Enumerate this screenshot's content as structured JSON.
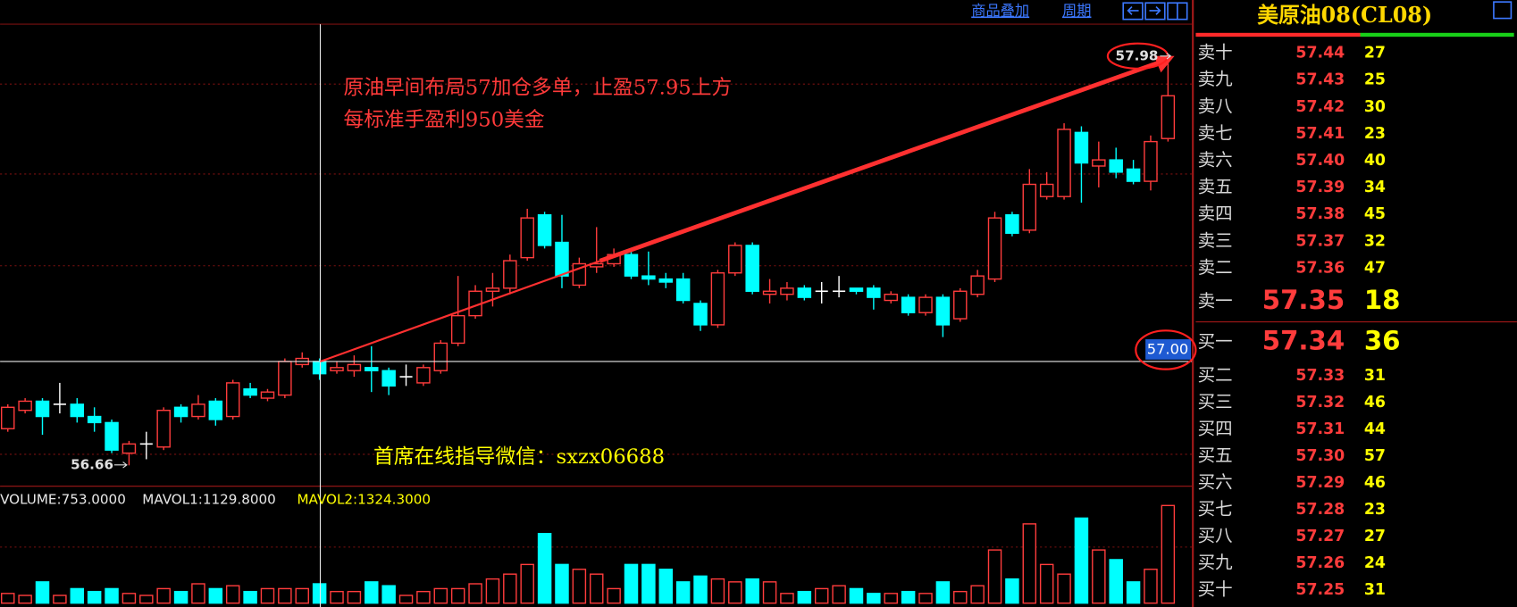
{
  "header": {
    "menu": [
      "商品叠加",
      "周期"
    ],
    "title": "美原油08(CL08)"
  },
  "annotations": {
    "note_lines": [
      "原油早间布局57加仓多单，止盈57.95上方",
      "每标准手盈利950美金"
    ],
    "wechat": "首席在线指导微信：sxzx06688",
    "high_label": "57.98",
    "low_label": "56.66",
    "cross_label": "57.00"
  },
  "order_book": {
    "asks": [
      {
        "label": "卖十",
        "price": "57.44",
        "volume": 27
      },
      {
        "label": "卖九",
        "price": "57.43",
        "volume": 25
      },
      {
        "label": "卖八",
        "price": "57.42",
        "volume": 30
      },
      {
        "label": "卖七",
        "price": "57.41",
        "volume": 23
      },
      {
        "label": "卖六",
        "price": "57.40",
        "volume": 40
      },
      {
        "label": "卖五",
        "price": "57.39",
        "volume": 34
      },
      {
        "label": "卖四",
        "price": "57.38",
        "volume": 45
      },
      {
        "label": "卖三",
        "price": "57.37",
        "volume": 32
      },
      {
        "label": "卖二",
        "price": "57.36",
        "volume": 47
      },
      {
        "label": "卖一",
        "price": "57.35",
        "volume": 18
      }
    ],
    "bids": [
      {
        "label": "买一",
        "price": "57.34",
        "volume": 36
      },
      {
        "label": "买二",
        "price": "57.33",
        "volume": 31
      },
      {
        "label": "买三",
        "price": "57.32",
        "volume": 46
      },
      {
        "label": "买四",
        "price": "57.31",
        "volume": 44
      },
      {
        "label": "买五",
        "price": "57.30",
        "volume": 57
      },
      {
        "label": "买六",
        "price": "57.29",
        "volume": 46
      },
      {
        "label": "买七",
        "price": "57.28",
        "volume": 23
      },
      {
        "label": "买八",
        "price": "57.27",
        "volume": 27
      },
      {
        "label": "买九",
        "price": "57.26",
        "volume": 24
      },
      {
        "label": "买十",
        "price": "57.25",
        "volume": 31
      }
    ]
  },
  "chart_data": {
    "type": "candlestick",
    "open": [
      56.78,
      56.84,
      56.87,
      56.86,
      56.86,
      56.82,
      56.8,
      56.7,
      56.73,
      56.72,
      56.85,
      56.82,
      56.87,
      56.82,
      56.91,
      56.88,
      56.89,
      56.99,
      57.0,
      56.97,
      56.97,
      56.98,
      56.97,
      56.95,
      56.93,
      56.97,
      57.06,
      57.15,
      57.23,
      57.24,
      57.34,
      57.48,
      57.39,
      57.25,
      57.31,
      57.32,
      57.35,
      57.28,
      57.27,
      57.27,
      57.19,
      57.12,
      57.29,
      57.38,
      57.22,
      57.22,
      57.24,
      57.23,
      57.23,
      57.24,
      57.24,
      57.2,
      57.21,
      57.16,
      57.21,
      57.14,
      57.22,
      57.27,
      57.48,
      57.43,
      57.54,
      57.54,
      57.75,
      57.64,
      57.66,
      57.63,
      57.59,
      57.73
    ],
    "high": [
      56.86,
      56.88,
      56.88,
      56.93,
      56.88,
      56.85,
      56.81,
      56.74,
      56.77,
      56.85,
      56.86,
      56.89,
      56.88,
      56.94,
      56.93,
      56.91,
      57.01,
      57.03,
      57.01,
      57.0,
      57.02,
      57.05,
      56.98,
      56.99,
      56.99,
      57.07,
      57.28,
      57.25,
      57.29,
      57.35,
      57.5,
      57.49,
      57.48,
      57.34,
      57.44,
      57.37,
      57.37,
      57.36,
      57.29,
      57.29,
      57.2,
      57.3,
      57.39,
      57.39,
      57.27,
      57.26,
      57.25,
      57.26,
      57.28,
      57.24,
      57.25,
      57.23,
      57.22,
      57.22,
      57.22,
      57.24,
      57.3,
      57.49,
      57.49,
      57.63,
      57.62,
      57.78,
      57.77,
      57.72,
      57.7,
      57.66,
      57.74,
      57.98
    ],
    "low": [
      56.77,
      56.83,
      56.76,
      56.83,
      56.8,
      56.77,
      56.7,
      56.66,
      56.68,
      56.71,
      56.8,
      56.81,
      56.79,
      56.81,
      56.88,
      56.87,
      56.88,
      56.98,
      56.94,
      56.96,
      56.95,
      56.9,
      56.89,
      56.92,
      56.92,
      56.96,
      57.05,
      57.14,
      57.18,
      57.22,
      57.33,
      57.37,
      57.24,
      57.24,
      57.29,
      57.31,
      57.27,
      57.25,
      57.24,
      57.19,
      57.1,
      57.11,
      57.28,
      57.22,
      57.19,
      57.2,
      57.2,
      57.19,
      57.21,
      57.22,
      57.17,
      57.19,
      57.15,
      57.15,
      57.08,
      57.13,
      57.21,
      57.26,
      57.41,
      57.42,
      57.53,
      57.53,
      57.52,
      57.57,
      57.6,
      57.58,
      57.56,
      57.72
    ],
    "close": [
      56.85,
      56.87,
      56.82,
      56.86,
      56.82,
      56.8,
      56.71,
      56.73,
      56.73,
      56.84,
      56.82,
      56.86,
      56.81,
      56.93,
      56.89,
      56.9,
      57.0,
      57.01,
      56.96,
      56.98,
      56.99,
      56.97,
      56.92,
      56.95,
      56.98,
      57.06,
      57.15,
      57.23,
      57.24,
      57.33,
      57.47,
      57.38,
      57.28,
      57.32,
      57.32,
      57.35,
      57.28,
      57.27,
      57.26,
      57.2,
      57.12,
      57.29,
      57.38,
      57.23,
      57.23,
      57.24,
      57.21,
      57.23,
      57.23,
      57.23,
      57.21,
      57.22,
      57.16,
      57.21,
      57.12,
      57.23,
      57.28,
      57.47,
      57.42,
      57.58,
      57.58,
      57.76,
      57.65,
      57.66,
      57.62,
      57.59,
      57.72,
      57.87
    ],
    "volume": [
      377,
      301,
      828,
      301,
      565,
      452,
      565,
      377,
      301,
      565,
      452,
      753,
      565,
      678,
      452,
      565,
      565,
      565,
      753,
      452,
      452,
      828,
      678,
      301,
      452,
      565,
      565,
      753,
      941,
      1130,
      1506,
      2711,
      1506,
      1318,
      1130,
      565,
      1506,
      1506,
      1318,
      828,
      1054,
      941,
      828,
      941,
      828,
      377,
      452,
      565,
      678,
      565,
      377,
      377,
      452,
      377,
      828,
      452,
      678,
      2071,
      941,
      3087,
      1506,
      1130,
      3313,
      2071,
      1694,
      828,
      1318,
      3803
    ],
    "volume_legend": [
      "VOLUME:753.0000",
      "MAVOL1:1129.8000",
      "MAVOL2:1324.3000"
    ]
  }
}
